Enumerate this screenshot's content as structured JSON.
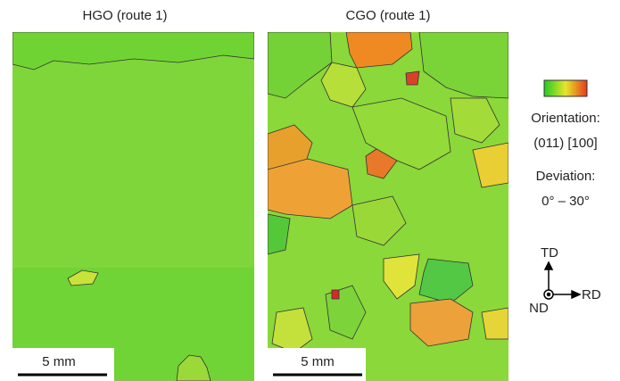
{
  "panels": [
    {
      "title": "HGO (route 1)",
      "scale_bar": "5 mm"
    },
    {
      "title": "CGO (route 1)",
      "scale_bar": "5 mm"
    }
  ],
  "legend": {
    "orientation_label": "Orientation:",
    "orientation": "(011) [100]",
    "deviation_label": "Deviation:",
    "deviation": "0° – 30°"
  },
  "axes": {
    "up": "TD",
    "right": "RD",
    "normal": "ND"
  }
}
